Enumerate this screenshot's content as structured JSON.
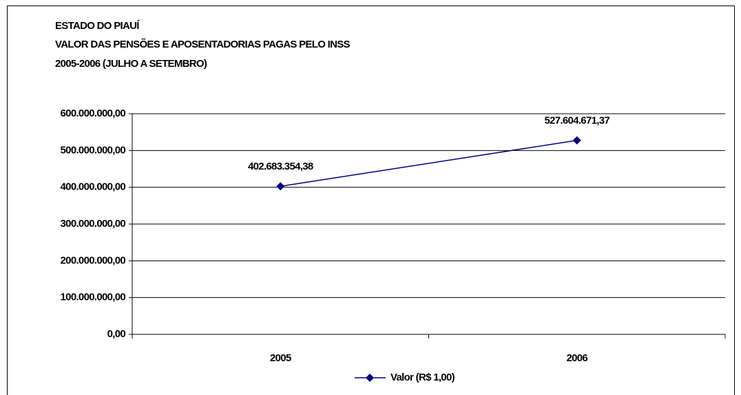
{
  "chart_data": {
    "type": "line",
    "title": [
      "ESTADO DO PIAUÍ",
      "VALOR DAS PENSÕES E APOSENTADORIAS PAGAS PELO INSS",
      "2005-2006 (JULHO A SETEMBRO)"
    ],
    "categories": [
      "2005",
      "2006"
    ],
    "series": [
      {
        "name": "Valor (R$ 1,00)",
        "color": "#000080",
        "values": [
          402683354.38,
          527604671.37
        ],
        "value_labels": [
          "402.683.354,38",
          "527.604.671,37"
        ]
      }
    ],
    "ylim": [
      0,
      600000000
    ],
    "yticks": [
      {
        "value": 0,
        "label": "0,00"
      },
      {
        "value": 100000000,
        "label": "100.000.000,00"
      },
      {
        "value": 200000000,
        "label": "200.000.000,00"
      },
      {
        "value": 300000000,
        "label": "300.000.000,00"
      },
      {
        "value": 400000000,
        "label": "400.000.000,00"
      },
      {
        "value": 500000000,
        "label": "500.000.000,00"
      },
      {
        "value": 600000000,
        "label": "600.000.000,00"
      }
    ],
    "grid": true,
    "legend": "bottom"
  }
}
